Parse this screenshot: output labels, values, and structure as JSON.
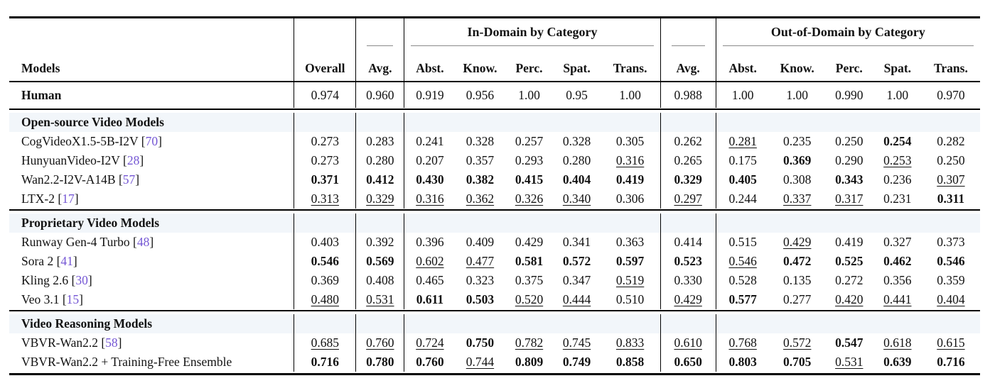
{
  "table": {
    "citation_color": "#7456d4",
    "section_row_bg": "#f2f6fa",
    "group_headers": {
      "in_domain": "In-Domain by Category",
      "out_domain": "Out-of-Domain by Category"
    },
    "columns": [
      "Models",
      "Overall",
      "Avg.",
      "Abst.",
      "Know.",
      "Perc.",
      "Spat.",
      "Trans.",
      "Avg.",
      "Abst.",
      "Know.",
      "Perc.",
      "Spat.",
      "Trans."
    ],
    "human_row": {
      "name": "Human",
      "values": [
        "0.974",
        "0.960",
        "0.919",
        "0.956",
        "1.00",
        "0.95",
        "1.00",
        "0.988",
        "1.00",
        "1.00",
        "0.990",
        "1.00",
        "0.970"
      ],
      "styles": [
        "",
        "",
        "",
        "",
        "",
        "",
        "",
        "",
        "",
        "",
        "",
        "",
        ""
      ]
    },
    "sections": [
      {
        "title": "Open-source Video Models",
        "rows": [
          {
            "name": "CogVideoX1.5-5B-I2V",
            "ref": "70",
            "values": [
              "0.273",
              "0.283",
              "0.241",
              "0.328",
              "0.257",
              "0.328",
              "0.305",
              "0.262",
              "0.281",
              "0.235",
              "0.250",
              "0.254",
              "0.282"
            ],
            "styles": [
              "",
              "",
              "",
              "",
              "",
              "",
              "",
              "",
              "u",
              "",
              "",
              "b",
              ""
            ]
          },
          {
            "name": "HunyuanVideo-I2V",
            "ref": "28",
            "values": [
              "0.273",
              "0.280",
              "0.207",
              "0.357",
              "0.293",
              "0.280",
              "0.316",
              "0.265",
              "0.175",
              "0.369",
              "0.290",
              "0.253",
              "0.250"
            ],
            "styles": [
              "",
              "",
              "",
              "",
              "",
              "",
              "u",
              "",
              "",
              "b",
              "",
              "u",
              ""
            ]
          },
          {
            "name": "Wan2.2-I2V-A14B",
            "ref": "57",
            "values": [
              "0.371",
              "0.412",
              "0.430",
              "0.382",
              "0.415",
              "0.404",
              "0.419",
              "0.329",
              "0.405",
              "0.308",
              "0.343",
              "0.236",
              "0.307"
            ],
            "styles": [
              "b",
              "b",
              "b",
              "b",
              "b",
              "b",
              "b",
              "b",
              "b",
              "",
              "b",
              "",
              "u"
            ]
          },
          {
            "name": "LTX-2",
            "ref": "17",
            "values": [
              "0.313",
              "0.329",
              "0.316",
              "0.362",
              "0.326",
              "0.340",
              "0.306",
              "0.297",
              "0.244",
              "0.337",
              "0.317",
              "0.231",
              "0.311"
            ],
            "styles": [
              "u",
              "u",
              "u",
              "u",
              "u",
              "u",
              "",
              "u",
              "",
              "u",
              "u",
              "",
              "b"
            ]
          }
        ]
      },
      {
        "title": "Proprietary Video Models",
        "rows": [
          {
            "name": "Runway Gen-4 Turbo",
            "ref": "48",
            "values": [
              "0.403",
              "0.392",
              "0.396",
              "0.409",
              "0.429",
              "0.341",
              "0.363",
              "0.414",
              "0.515",
              "0.429",
              "0.419",
              "0.327",
              "0.373"
            ],
            "styles": [
              "",
              "",
              "",
              "",
              "",
              "",
              "",
              "",
              "",
              "u",
              "",
              "",
              ""
            ]
          },
          {
            "name": "Sora 2",
            "ref": "41",
            "values": [
              "0.546",
              "0.569",
              "0.602",
              "0.477",
              "0.581",
              "0.572",
              "0.597",
              "0.523",
              "0.546",
              "0.472",
              "0.525",
              "0.462",
              "0.546"
            ],
            "styles": [
              "b",
              "b",
              "u",
              "u",
              "b",
              "b",
              "b",
              "b",
              "u",
              "b",
              "b",
              "b",
              "b"
            ]
          },
          {
            "name": "Kling 2.6",
            "ref": "30",
            "values": [
              "0.369",
              "0.408",
              "0.465",
              "0.323",
              "0.375",
              "0.347",
              "0.519",
              "0.330",
              "0.528",
              "0.135",
              "0.272",
              "0.356",
              "0.359"
            ],
            "styles": [
              "",
              "",
              "",
              "",
              "",
              "",
              "u",
              "",
              "",
              "",
              "",
              "",
              ""
            ]
          },
          {
            "name": "Veo 3.1",
            "ref": "15",
            "values": [
              "0.480",
              "0.531",
              "0.611",
              "0.503",
              "0.520",
              "0.444",
              "0.510",
              "0.429",
              "0.577",
              "0.277",
              "0.420",
              "0.441",
              "0.404"
            ],
            "styles": [
              "u",
              "u",
              "b",
              "b",
              "u",
              "u",
              "",
              "u",
              "b",
              "",
              "u",
              "u",
              "u"
            ]
          }
        ]
      },
      {
        "title": "Video Reasoning Models",
        "rows": [
          {
            "name": "VBVR-Wan2.2",
            "ref": "58",
            "values": [
              "0.685",
              "0.760",
              "0.724",
              "0.750",
              "0.782",
              "0.745",
              "0.833",
              "0.610",
              "0.768",
              "0.572",
              "0.547",
              "0.618",
              "0.615"
            ],
            "styles": [
              "u",
              "u",
              "u",
              "b",
              "u",
              "u",
              "u",
              "u",
              "u",
              "u",
              "b",
              "u",
              "u"
            ]
          },
          {
            "name": "VBVR-Wan2.2 + Training-Free Ensemble",
            "ref": "",
            "values": [
              "0.716",
              "0.780",
              "0.760",
              "0.744",
              "0.809",
              "0.749",
              "0.858",
              "0.650",
              "0.803",
              "0.705",
              "0.531",
              "0.639",
              "0.716"
            ],
            "styles": [
              "b",
              "b",
              "b",
              "u",
              "b",
              "b",
              "b",
              "b",
              "b",
              "b",
              "u",
              "b",
              "b"
            ]
          }
        ]
      }
    ]
  }
}
